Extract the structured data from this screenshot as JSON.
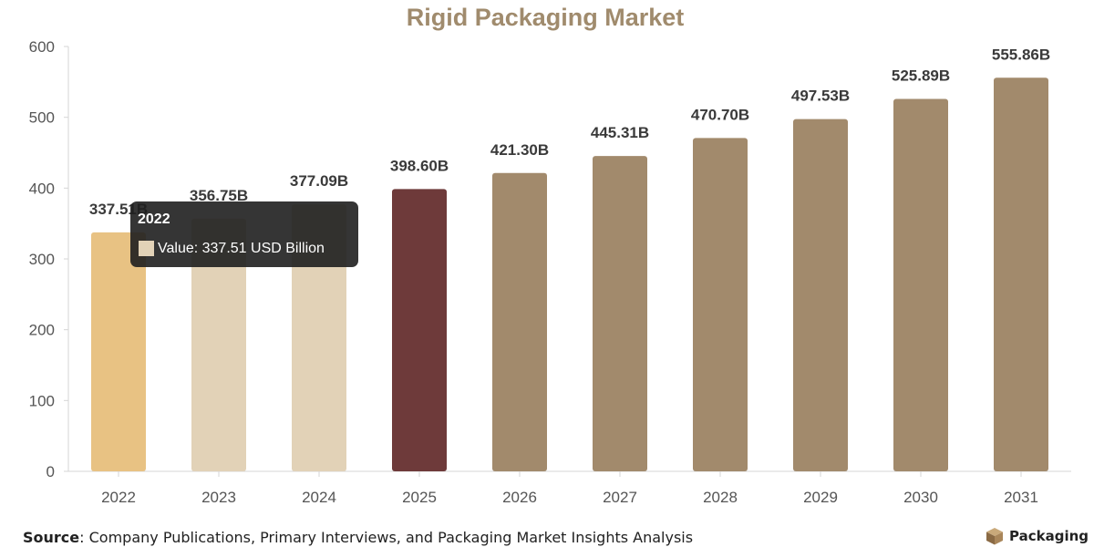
{
  "chart_data": {
    "type": "bar",
    "title": "Rigid Packaging Market",
    "xlabel": "",
    "ylabel": "",
    "categories": [
      "2022",
      "2023",
      "2024",
      "2025",
      "2026",
      "2027",
      "2028",
      "2029",
      "2030",
      "2031"
    ],
    "values": [
      337.51,
      356.75,
      377.09,
      398.6,
      421.3,
      445.31,
      470.7,
      497.53,
      525.89,
      555.86
    ],
    "data_labels": [
      "337.51B",
      "356.75B",
      "377.09B",
      "398.60B",
      "421.30B",
      "445.31B",
      "470.70B",
      "497.53B",
      "525.89B",
      "555.86B"
    ],
    "bar_colors": [
      "#e8c283",
      "#e2d2b7",
      "#e2d2b7",
      "#6e3a3a",
      "#a28a6c",
      "#a28a6c",
      "#a28a6c",
      "#a28a6c",
      "#a28a6c",
      "#a28a6c"
    ],
    "ylim": [
      0,
      600
    ],
    "yticks": [
      0,
      100,
      200,
      300,
      400,
      500,
      600
    ],
    "grid": false,
    "legend": "none",
    "title_color": "#a08b6d",
    "tooltip": {
      "category_index": 0,
      "title": "2022",
      "text": "Value: 337.51 USD Billion",
      "swatch_color": "#e2d2b7"
    }
  },
  "footer": {
    "source_label": "Source",
    "source_text": ": Company Publications, Primary Interviews, and Packaging Market Insights Analysis",
    "logo_text": "Packaging",
    "logo_icon": "box-icon"
  }
}
